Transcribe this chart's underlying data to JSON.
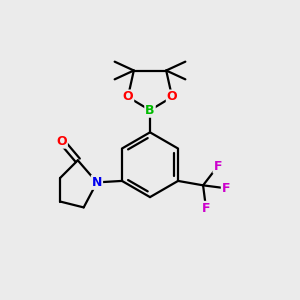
{
  "background_color": "#ebebeb",
  "atom_colors": {
    "B": "#00bb00",
    "O": "#ff0000",
    "N": "#0000ee",
    "F": "#cc00cc",
    "C": "#000000"
  },
  "bond_color": "#000000",
  "bond_width": 1.6,
  "figsize": [
    3.0,
    3.0
  ],
  "dpi": 100
}
